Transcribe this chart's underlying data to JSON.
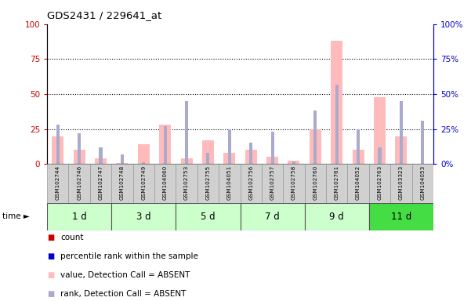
{
  "title": "GDS2431 / 229641_at",
  "samples": [
    "GSM102744",
    "GSM102746",
    "GSM102747",
    "GSM102748",
    "GSM102749",
    "GSM104060",
    "GSM102753",
    "GSM102755",
    "GSM104051",
    "GSM102756",
    "GSM102757",
    "GSM102758",
    "GSM102760",
    "GSM102761",
    "GSM104052",
    "GSM102763",
    "GSM103323",
    "GSM104053"
  ],
  "group_labels": [
    "1 d",
    "3 d",
    "5 d",
    "7 d",
    "9 d",
    "11 d"
  ],
  "group_sizes": [
    3,
    3,
    3,
    3,
    3,
    3
  ],
  "group_colors": [
    "#ccffcc",
    "#ccffcc",
    "#ccffcc",
    "#ccffcc",
    "#ccffcc",
    "#44dd44"
  ],
  "value_bars_absent": [
    20,
    10,
    4,
    0.5,
    14,
    28,
    4,
    17,
    8,
    10,
    5,
    2.5,
    25,
    88,
    10,
    48,
    20,
    0
  ],
  "rank_bars_absent": [
    28,
    22,
    12,
    7,
    1,
    27,
    45,
    8,
    25,
    15,
    23,
    2,
    38,
    57,
    25,
    12,
    45,
    31
  ],
  "ylim": [
    0,
    100
  ],
  "yticks": [
    0,
    25,
    50,
    75,
    100
  ],
  "grid_lines": [
    25,
    50,
    75
  ],
  "absent_value_color": "#ffbbbb",
  "absent_rank_color": "#aaaacc",
  "count_color": "#cc0000",
  "percentile_color": "#0000cc",
  "left_axis_color": "#cc0000",
  "right_axis_color": "#0000cc",
  "legend_items": [
    {
      "color": "#cc0000",
      "label": "count"
    },
    {
      "color": "#0000cc",
      "label": "percentile rank within the sample"
    },
    {
      "color": "#ffbbbb",
      "label": "value, Detection Call = ABSENT"
    },
    {
      "color": "#aaaacc",
      "label": "rank, Detection Call = ABSENT"
    }
  ]
}
